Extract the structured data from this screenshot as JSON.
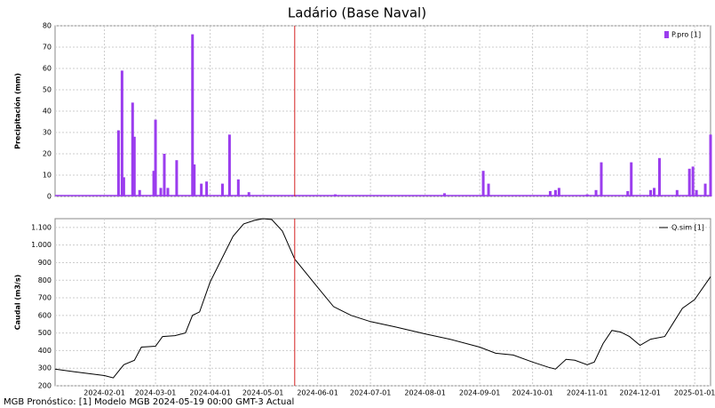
{
  "title": "Ladário (Base Naval)",
  "footer": "MGB Pronóstico: [1] Modelo MGB 2024-05-19 00:00 GMT-3 Actual",
  "chart_data": [
    {
      "type": "bar",
      "ylabel": "Precipitación (mm)",
      "x": [
        "2024-02-09",
        "2024-02-11",
        "2024-02-12",
        "2024-02-17",
        "2024-02-18",
        "2024-02-21",
        "2024-02-29",
        "2024-03-01",
        "2024-03-04",
        "2024-03-06",
        "2024-03-08",
        "2024-03-13",
        "2024-03-22",
        "2024-03-23",
        "2024-03-27",
        "2024-03-30",
        "2024-04-08",
        "2024-04-12",
        "2024-04-17",
        "2024-04-23",
        "2024-06-11",
        "2024-08-12",
        "2024-09-03",
        "2024-09-06",
        "2024-10-11",
        "2024-10-14",
        "2024-10-16",
        "2024-11-01",
        "2024-11-06",
        "2024-11-09",
        "2024-11-24",
        "2024-11-26",
        "2024-12-07",
        "2024-12-09",
        "2024-12-12",
        "2024-12-22",
        "2024-12-29",
        "2024-12-31",
        "2025-01-02",
        "2025-01-07",
        "2025-01-10"
      ],
      "series": [
        {
          "name": "P.pro [1]",
          "color": "#9b3dee",
          "values": [
            31,
            59,
            9,
            44,
            28,
            3,
            12,
            36,
            4,
            20,
            4,
            17,
            76,
            15,
            6,
            7,
            6,
            29,
            8,
            2,
            1,
            1.5,
            12,
            6,
            2.5,
            3,
            4,
            1,
            3,
            16,
            2.5,
            16,
            3,
            4,
            18,
            3,
            13,
            14,
            3,
            6,
            29
          ]
        }
      ],
      "xlim": [
        "2024-01-04",
        "2025-01-10"
      ],
      "ylim": [
        0,
        80
      ],
      "yticks": [
        0,
        10,
        20,
        30,
        40,
        50,
        60,
        70,
        80
      ],
      "grid": true,
      "legend": "top-right",
      "forecast_line": "2024-05-19",
      "forecast_color": "#d62020"
    },
    {
      "type": "line",
      "ylabel": "Caudal (m3/s)",
      "x": [
        "2024-01-04",
        "2024-01-15",
        "2024-02-01",
        "2024-02-06",
        "2024-02-12",
        "2024-02-18",
        "2024-02-22",
        "2024-03-01",
        "2024-03-05",
        "2024-03-12",
        "2024-03-18",
        "2024-03-22",
        "2024-03-26",
        "2024-04-01",
        "2024-04-08",
        "2024-04-14",
        "2024-04-20",
        "2024-04-26",
        "2024-05-01",
        "2024-05-06",
        "2024-05-12",
        "2024-05-19",
        "2024-06-01",
        "2024-06-10",
        "2024-06-20",
        "2024-07-01",
        "2024-07-15",
        "2024-08-01",
        "2024-08-15",
        "2024-09-01",
        "2024-09-10",
        "2024-09-20",
        "2024-10-01",
        "2024-10-10",
        "2024-10-14",
        "2024-10-20",
        "2024-10-25",
        "2024-11-01",
        "2024-11-05",
        "2024-11-10",
        "2024-11-15",
        "2024-11-20",
        "2024-11-25",
        "2024-12-01",
        "2024-12-07",
        "2024-12-15",
        "2024-12-20",
        "2024-12-25",
        "2025-01-01",
        "2025-01-10"
      ],
      "series": [
        {
          "name": "Q.sim [1]",
          "color": "#000000",
          "values": [
            295,
            280,
            258,
            245,
            320,
            345,
            420,
            425,
            480,
            485,
            500,
            600,
            620,
            790,
            930,
            1050,
            1120,
            1140,
            1150,
            1145,
            1080,
            920,
            760,
            650,
            600,
            565,
            535,
            495,
            465,
            420,
            385,
            375,
            335,
            305,
            295,
            350,
            345,
            320,
            335,
            440,
            515,
            505,
            480,
            430,
            465,
            480,
            560,
            640,
            690,
            820
          ]
        }
      ],
      "xlim": [
        "2024-01-04",
        "2025-01-10"
      ],
      "xticks": [
        "2024-02-01",
        "2024-03-01",
        "2024-04-01",
        "2024-05-01",
        "2024-06-01",
        "2024-07-01",
        "2024-08-01",
        "2024-09-01",
        "2024-10-01",
        "2024-11-01",
        "2024-12-01",
        "2025-01-01"
      ],
      "ylim": [
        200,
        1150
      ],
      "yticks": [
        200,
        300,
        400,
        500,
        600,
        700,
        800,
        900,
        {
          "value": 1000,
          "label": "1.000"
        },
        {
          "value": 1100,
          "label": "1.100"
        }
      ],
      "grid": true,
      "legend": "top-right",
      "forecast_line": "2024-05-19",
      "forecast_color": "#d62020"
    }
  ]
}
